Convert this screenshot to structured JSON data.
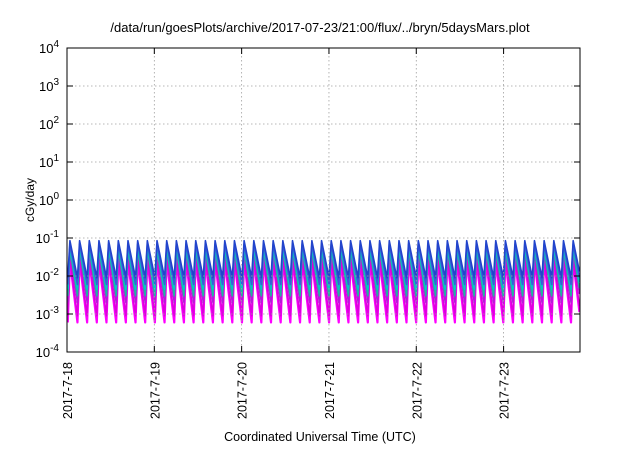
{
  "chart_data": {
    "type": "line",
    "title": "/data/run/goesPlots/archive/2017-07-23/21:00/flux/../bryn/5daysMars.plot",
    "xlabel": "Coordinated Universal Time (UTC)",
    "ylabel": "cGy/day",
    "yscale": "log",
    "ylim": [
      0.0001,
      10000
    ],
    "y_ticks": [
      {
        "value": 0.0001,
        "base": "10",
        "exp": "-4"
      },
      {
        "value": 0.001,
        "base": "10",
        "exp": "-3"
      },
      {
        "value": 0.01,
        "base": "10",
        "exp": "-2"
      },
      {
        "value": 0.1,
        "base": "10",
        "exp": "-1"
      },
      {
        "value": 1,
        "base": "10",
        "exp": "0"
      },
      {
        "value": 10,
        "base": "10",
        "exp": "1"
      },
      {
        "value": 100,
        "base": "10",
        "exp": "2"
      },
      {
        "value": 1000,
        "base": "10",
        "exp": "3"
      },
      {
        "value": 10000,
        "base": "10",
        "exp": "4"
      }
    ],
    "xlim": [
      "2017-07-18T00:00",
      "2017-07-23T21:00"
    ],
    "x_ticks": [
      "2017-7-18",
      "2017-7-19",
      "2017-7-20",
      "2017-7-21",
      "2017-7-22",
      "2017-7-23"
    ],
    "grid": true,
    "legend": "none",
    "cycle_hours": 2.66,
    "cycle_phase_hours": 0.8,
    "series": [
      {
        "color": "#ff00ff",
        "peak": 0.025,
        "trough": 0.0006
      },
      {
        "color": "#dd00dd",
        "peak": 0.03,
        "trough": 0.0009
      },
      {
        "color": "#b21fd6",
        "peak": 0.045,
        "trough": 0.002
      },
      {
        "color": "#1fb5a0",
        "peak": 0.05,
        "trough": 0.003
      },
      {
        "color": "#00c8c8",
        "peak": 0.06,
        "trough": 0.0045
      },
      {
        "color": "#3b5bd9",
        "peak": 0.07,
        "trough": 0.006
      },
      {
        "color": "#2244cc",
        "peak": 0.085,
        "trough": 0.009
      }
    ]
  }
}
